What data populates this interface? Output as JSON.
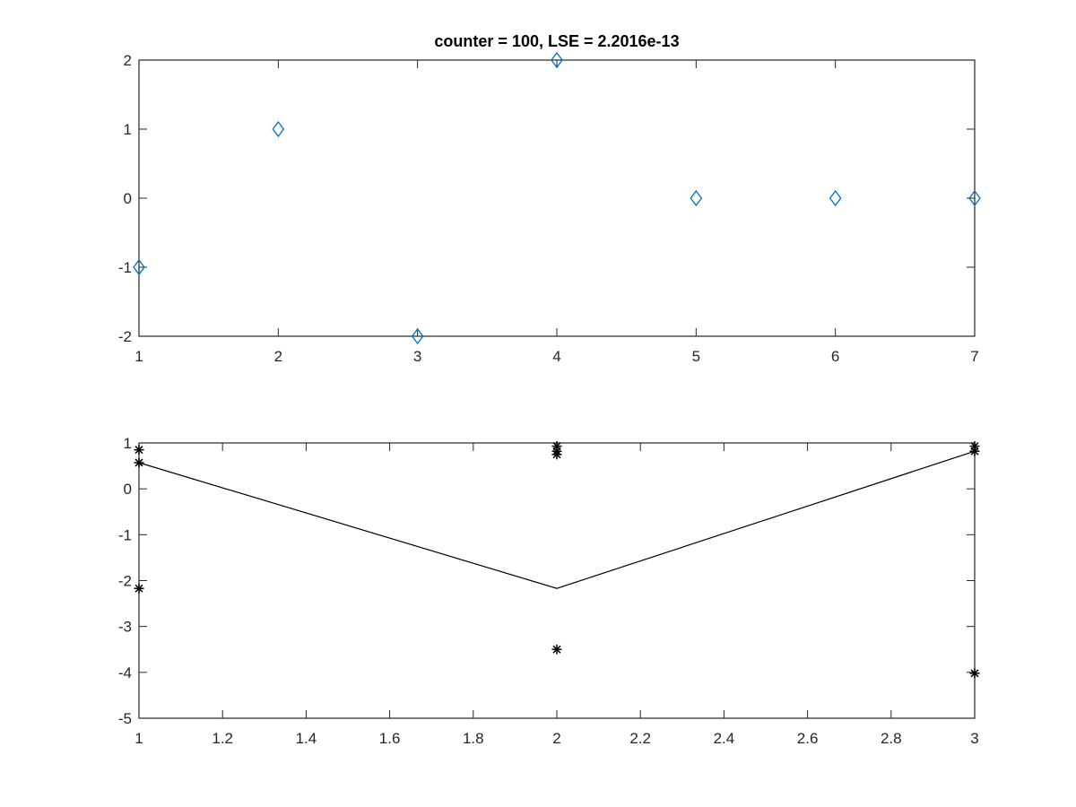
{
  "chart_data": [
    {
      "type": "scatter",
      "title": "counter = 100, LSE = 2.2016e-13",
      "xlim": [
        1,
        7
      ],
      "ylim": [
        -2,
        2
      ],
      "xticks": [
        1,
        2,
        3,
        4,
        5,
        6,
        7
      ],
      "yticks": [
        2,
        1,
        0,
        -1,
        -2
      ],
      "xtick_labels": [
        "1",
        "2",
        "3",
        "4",
        "5",
        "6",
        "7"
      ],
      "ytick_labels": [
        "2",
        "1",
        "0",
        "-1",
        "-2"
      ],
      "grid": false,
      "marker": "diamond",
      "marker_color": "#0072BD",
      "x": [
        1,
        2,
        3,
        4,
        5,
        6,
        7
      ],
      "y": [
        -1,
        1,
        -2,
        2,
        0,
        0,
        0
      ]
    },
    {
      "type": "line",
      "title": "",
      "xlim": [
        1,
        3
      ],
      "ylim": [
        -5,
        1
      ],
      "xticks": [
        1,
        1.2,
        1.4,
        1.6,
        1.8,
        2,
        2.2,
        2.4,
        2.6,
        2.8,
        3
      ],
      "yticks": [
        1,
        0,
        -1,
        -2,
        -3,
        -4,
        -5
      ],
      "xtick_labels": [
        "1",
        "1.2",
        "1.4",
        "1.6",
        "1.8",
        "2",
        "2.2",
        "2.4",
        "2.6",
        "2.8",
        "3"
      ],
      "ytick_labels": [
        "1",
        "0",
        "-1",
        "-2",
        "-3",
        "-4",
        "-5"
      ],
      "grid": false,
      "line_color": "#000000",
      "line": {
        "x": [
          1,
          2,
          3
        ],
        "y": [
          0.57,
          -2.17,
          0.82
        ]
      },
      "markers": {
        "marker": "asterisk",
        "color": "#000000",
        "x": [
          1,
          1,
          1,
          2,
          2,
          2,
          2,
          3,
          3,
          3
        ],
        "y": [
          0.85,
          0.57,
          -2.17,
          0.93,
          0.75,
          -3.5,
          0.82,
          0.93,
          0.82,
          -4.02
        ]
      }
    }
  ]
}
